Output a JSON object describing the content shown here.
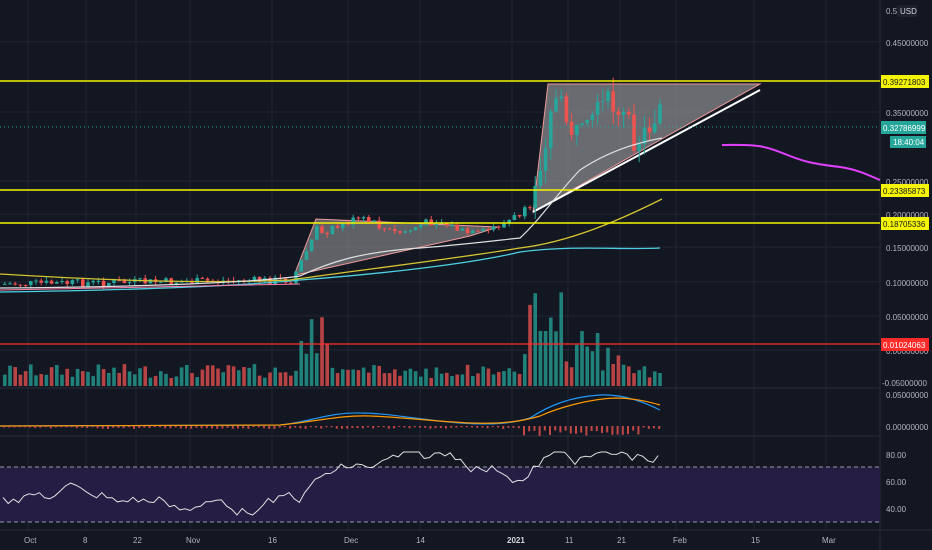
{
  "currency": "USD",
  "price_axis": {
    "ticks": [
      "0.5",
      "0.45000000",
      "0.35000000",
      "0.25000000",
      "0.20000000",
      "0.15000000",
      "0.10000000",
      "0.05000000",
      "0.00000000",
      "-0.05000000"
    ]
  },
  "level_labels": {
    "resistance_top": "0.39271803",
    "current_price": "0.32786999",
    "countdown": "18:40:04",
    "support_mid": "0.23385873",
    "support_low": "0.18705336",
    "volume_level": "0.01024063"
  },
  "macd_axis": {
    "ticks": [
      "0.05000000",
      "0.00000000"
    ]
  },
  "rsi_axis": {
    "ticks": [
      "80.00",
      "60.00",
      "40.00"
    ]
  },
  "time_axis": {
    "ticks": [
      "Oct",
      "8",
      "22",
      "Nov",
      "16",
      "Dec",
      "14",
      "2021",
      "11",
      "21",
      "Feb",
      "15",
      "Mar"
    ]
  },
  "colors": {
    "background": "#131722",
    "up": "#26a69a",
    "down": "#ef5350",
    "horizontal_level": "#f5f500",
    "volume_level": "#ff2b2b",
    "rsi_band": "#2a1f4a"
  },
  "chart_data": {
    "type": "candlestick",
    "price_levels": [
      0.39271803,
      0.23385873,
      0.18705336
    ],
    "current_price": 0.32786999,
    "volume_level": 0.01024063,
    "price_range": [
      0.0,
      0.5
    ],
    "rsi_levels": [
      70,
      30
    ],
    "rsi_range": [
      20,
      90
    ],
    "grid": true,
    "indicators": [
      "moving averages",
      "volume",
      "MACD",
      "RSI"
    ]
  }
}
